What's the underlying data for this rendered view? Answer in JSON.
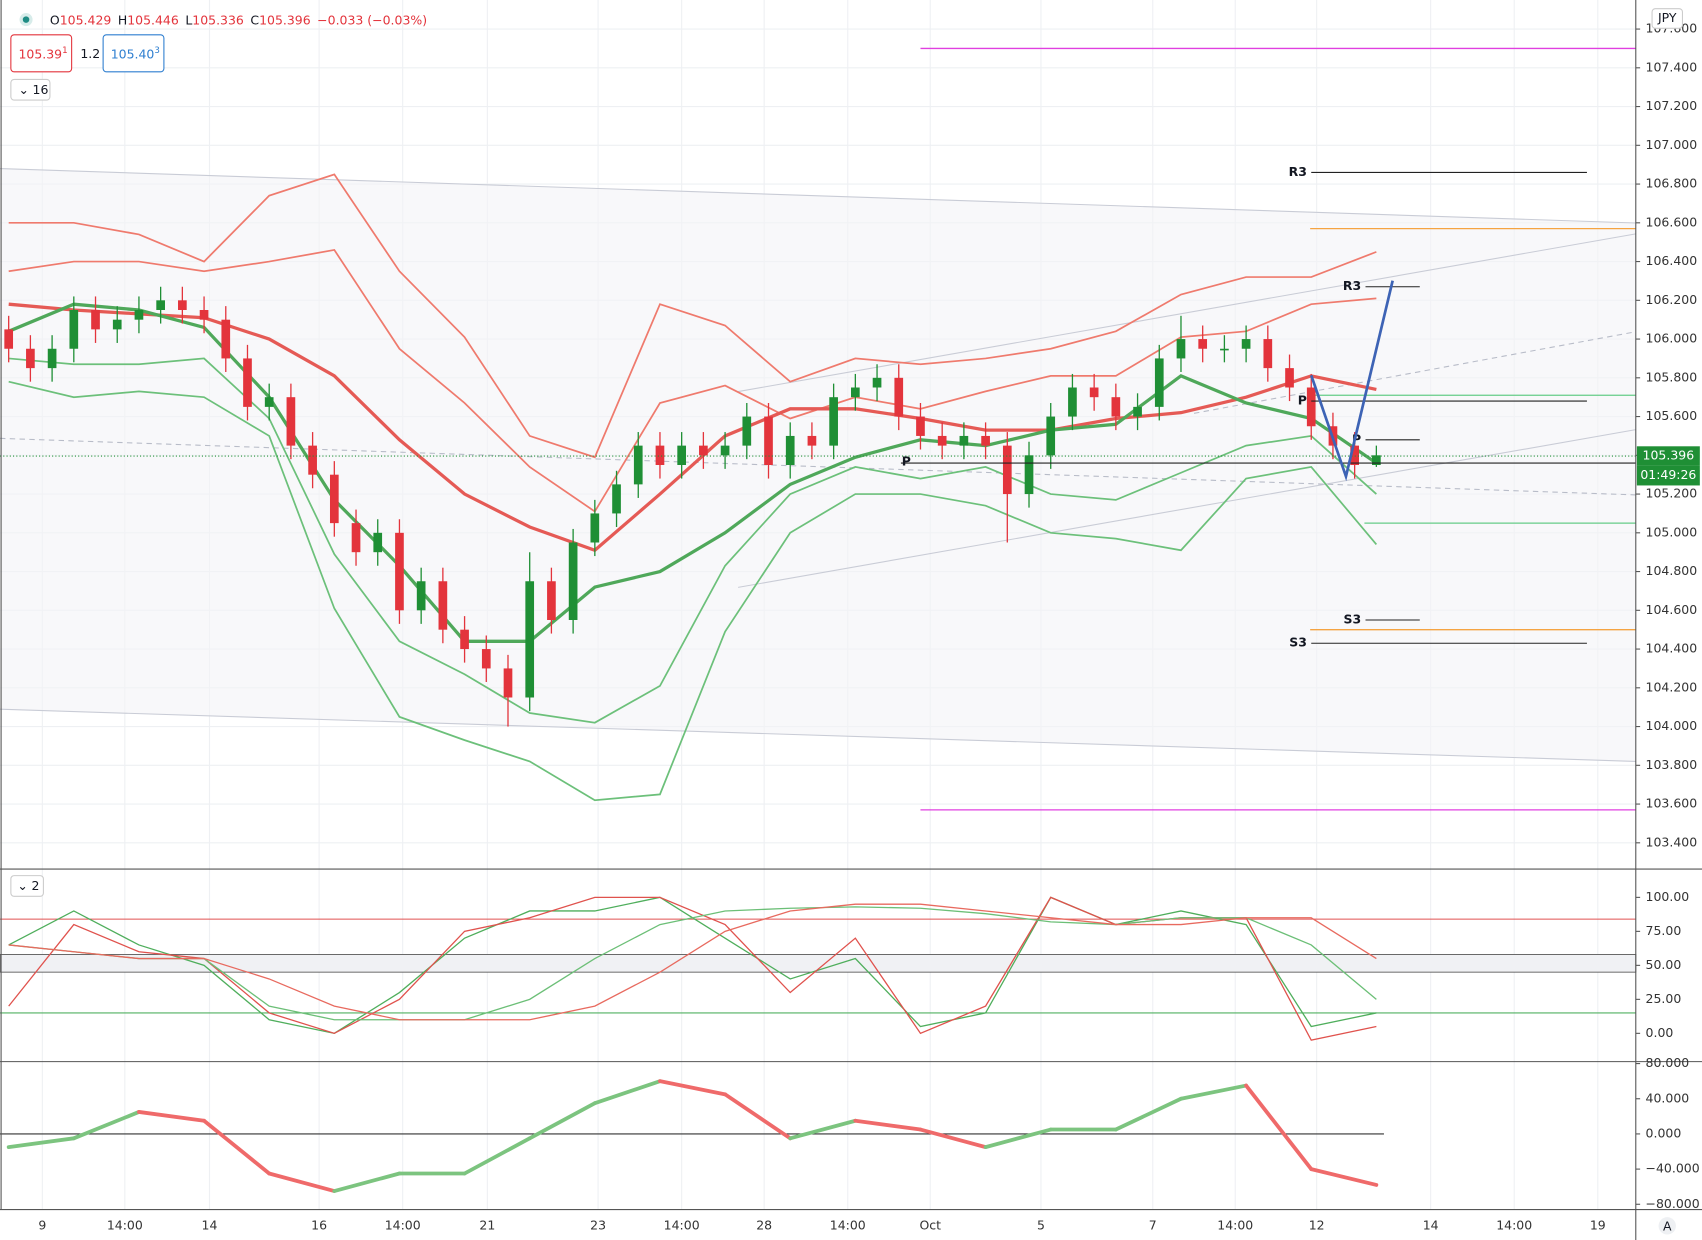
{
  "header": {
    "ohlc": [
      [
        "O",
        "105.429"
      ],
      [
        "H",
        "105.446"
      ],
      [
        "L",
        "105.336"
      ],
      [
        "C",
        "105.396"
      ]
    ],
    "change": "−0.033 (−0.03%)",
    "sell": "105.39",
    "sell_sup": "1",
    "spread": "1.2",
    "buy": "105.40",
    "buy_sup": "3",
    "interval_toggle": "16",
    "osc_toggle": "2",
    "currency": "JPY",
    "auto_label": "A"
  },
  "time_axis": [
    "9",
    "14:00",
    "14",
    "16",
    "14:00",
    "21",
    "23",
    "14:00",
    "28",
    "14:00",
    "Oct",
    "5",
    "7",
    "14:00",
    "12",
    "14",
    "14:00",
    "19"
  ],
  "chart_data": [
    {
      "type": "candlestick",
      "ylim": [
        103.27,
        107.75
      ],
      "grid": true,
      "up_color": "#1f8f35",
      "down_color": "#e3343c",
      "yticks": [
        {
          "value": 103.4,
          "label": "103.400"
        },
        {
          "value": 103.6,
          "label": "103.600"
        },
        {
          "value": 103.8,
          "label": "103.800"
        },
        {
          "value": 104.0,
          "label": "104.000"
        },
        {
          "value": 104.2,
          "label": "104.200"
        },
        {
          "value": 104.4,
          "label": "104.400"
        },
        {
          "value": 104.6,
          "label": "104.600"
        },
        {
          "value": 104.8,
          "label": "104.800"
        },
        {
          "value": 105.0,
          "label": "105.000"
        },
        {
          "value": 105.2,
          "label": "105.200"
        },
        {
          "value": 105.4,
          "label": "105.400"
        },
        {
          "value": 105.6,
          "label": "105.600"
        },
        {
          "value": 105.8,
          "label": "105.800"
        },
        {
          "value": 106.0,
          "label": "106.000"
        },
        {
          "value": 106.2,
          "label": "106.200"
        },
        {
          "value": 106.4,
          "label": "106.400"
        },
        {
          "value": 106.6,
          "label": "106.600"
        },
        {
          "value": 106.8,
          "label": "106.800"
        },
        {
          "value": 107.0,
          "label": "107.000"
        },
        {
          "value": 107.2,
          "label": "107.200"
        },
        {
          "value": 107.4,
          "label": "107.400"
        },
        {
          "value": 107.6,
          "label": "107.600"
        }
      ],
      "open": [
        106.05,
        105.95,
        105.85,
        105.95,
        106.15,
        106.05,
        106.1,
        106.15,
        106.2,
        106.15,
        106.1,
        105.9,
        105.65,
        105.7,
        105.45,
        105.3,
        105.05,
        104.9,
        105.0,
        104.6,
        104.75,
        104.5,
        104.4,
        104.3,
        104.15,
        104.75,
        104.55,
        104.95,
        105.1,
        105.25,
        105.45,
        105.35,
        105.45,
        105.4,
        105.45,
        105.6,
        105.35,
        105.5,
        105.45,
        105.7,
        105.75,
        105.8,
        105.6,
        105.5,
        105.45,
        105.5,
        105.45,
        105.2,
        105.4,
        105.6,
        105.75,
        105.7,
        105.6,
        105.65,
        105.9,
        106.0,
        105.95,
        105.95,
        106.0,
        105.85,
        105.75,
        105.55,
        105.45,
        105.35
      ],
      "high": [
        106.12,
        106.02,
        106.02,
        106.22,
        106.22,
        106.17,
        106.22,
        106.27,
        106.27,
        106.22,
        106.17,
        105.97,
        105.77,
        105.77,
        105.52,
        105.37,
        105.12,
        105.07,
        105.07,
        104.82,
        104.82,
        104.57,
        104.47,
        104.37,
        104.9,
        104.82,
        105.02,
        105.17,
        105.32,
        105.52,
        105.52,
        105.52,
        105.52,
        105.52,
        105.67,
        105.67,
        105.57,
        105.57,
        105.77,
        105.82,
        105.87,
        105.87,
        105.67,
        105.57,
        105.57,
        105.57,
        105.52,
        105.47,
        105.67,
        105.82,
        105.82,
        105.77,
        105.72,
        105.97,
        106.12,
        106.07,
        106.02,
        106.07,
        106.07,
        105.92,
        105.82,
        105.62,
        105.52,
        105.45
      ],
      "low": [
        105.88,
        105.78,
        105.78,
        105.88,
        105.98,
        105.98,
        106.03,
        106.08,
        106.08,
        106.03,
        105.83,
        105.58,
        105.58,
        105.38,
        105.23,
        104.98,
        104.83,
        104.83,
        104.53,
        104.53,
        104.43,
        104.33,
        104.23,
        104.0,
        104.08,
        104.48,
        104.48,
        104.88,
        105.03,
        105.18,
        105.28,
        105.28,
        105.33,
        105.33,
        105.38,
        105.28,
        105.28,
        105.38,
        105.38,
        105.63,
        105.68,
        105.53,
        105.43,
        105.38,
        105.38,
        105.38,
        104.95,
        105.13,
        105.33,
        105.53,
        105.63,
        105.53,
        105.53,
        105.58,
        105.83,
        105.88,
        105.88,
        105.88,
        105.78,
        105.68,
        105.48,
        105.38,
        105.28,
        105.34
      ],
      "close": [
        105.95,
        105.85,
        105.95,
        106.15,
        106.05,
        106.1,
        106.15,
        106.2,
        106.15,
        106.1,
        105.9,
        105.65,
        105.7,
        105.45,
        105.3,
        105.05,
        104.9,
        105.0,
        104.6,
        104.75,
        104.5,
        104.4,
        104.3,
        104.15,
        104.75,
        104.55,
        104.95,
        105.1,
        105.25,
        105.45,
        105.35,
        105.45,
        105.4,
        105.45,
        105.6,
        105.35,
        105.5,
        105.45,
        105.7,
        105.75,
        105.8,
        105.6,
        105.5,
        105.45,
        105.5,
        105.45,
        105.2,
        105.4,
        105.6,
        105.75,
        105.7,
        105.6,
        105.65,
        105.9,
        106.0,
        105.95,
        105.95,
        106.0,
        105.85,
        105.75,
        105.55,
        105.45,
        105.35,
        105.4
      ],
      "overlays": [
        {
          "color": "#ef7a6d",
          "width": 1.6,
          "values": [
            106.6,
            106.6,
            106.54,
            106.4,
            106.74,
            106.85,
            106.35,
            106.01,
            105.5,
            105.39,
            106.18,
            106.07,
            105.78,
            105.9,
            105.87,
            105.9,
            105.95,
            106.04,
            106.23,
            106.32,
            106.32,
            106.45
          ]
        },
        {
          "color": "#ef7a6d",
          "width": 1.6,
          "values": [
            106.35,
            106.4,
            106.4,
            106.35,
            106.4,
            106.46,
            105.95,
            105.67,
            105.34,
            105.11,
            105.67,
            105.76,
            105.59,
            105.7,
            105.64,
            105.73,
            105.81,
            105.81,
            106.01,
            106.04,
            106.18,
            106.21
          ]
        },
        {
          "color": "#e55a55",
          "width": 3,
          "values": [
            106.18,
            106.15,
            106.13,
            106.11,
            106.0,
            105.81,
            105.48,
            105.2,
            105.03,
            104.91,
            105.2,
            105.5,
            105.64,
            105.64,
            105.59,
            105.53,
            105.53,
            105.59,
            105.62,
            105.7,
            105.81,
            105.74
          ]
        },
        {
          "color": "#4fa85a",
          "width": 3,
          "values": [
            106.04,
            106.18,
            106.15,
            106.06,
            105.7,
            105.17,
            104.83,
            104.44,
            104.44,
            104.72,
            104.8,
            105.0,
            105.25,
            105.39,
            105.48,
            105.45,
            105.53,
            105.56,
            105.81,
            105.67,
            105.59,
            105.36
          ]
        },
        {
          "color": "#6cc07a",
          "width": 1.6,
          "values": [
            105.9,
            105.87,
            105.87,
            105.9,
            105.59,
            104.89,
            104.44,
            104.27,
            104.07,
            104.02,
            104.21,
            104.83,
            105.2,
            105.34,
            105.28,
            105.34,
            105.2,
            105.17,
            105.31,
            105.45,
            105.5,
            105.2
          ]
        },
        {
          "color": "#6cc07a",
          "width": 1.6,
          "values": [
            105.78,
            105.7,
            105.73,
            105.7,
            105.5,
            104.61,
            104.05,
            103.93,
            103.82,
            103.62,
            103.65,
            104.49,
            105.0,
            105.2,
            105.2,
            105.14,
            105.0,
            104.97,
            104.91,
            105.28,
            105.34,
            104.94
          ]
        }
      ],
      "levels": [
        {
          "value": 107.5,
          "color": "#e040e0"
        },
        {
          "value": 103.57,
          "color": "#e040e0"
        },
        {
          "value": 106.57,
          "color": "#f5a442"
        },
        {
          "value": 104.5,
          "color": "#f5a442"
        },
        {
          "value": 105.71,
          "color": "#66cc88"
        },
        {
          "value": 105.05,
          "color": "#66cc88"
        }
      ],
      "pivots": [
        {
          "label": "R3",
          "value": 106.86
        },
        {
          "label": "R3",
          "value": 106.27
        },
        {
          "label": "P",
          "value": 105.68
        },
        {
          "label": "P",
          "value": 105.48
        },
        {
          "label": "S3",
          "value": 104.55
        },
        {
          "label": "S3",
          "value": 104.43
        },
        {
          "label": "P",
          "value": 105.36
        }
      ],
      "last_price": {
        "value": 105.396,
        "label": "105.396"
      },
      "countdown": "01:49:26"
    },
    {
      "type": "oscillator",
      "ylim": [
        -20,
        120
      ],
      "yticks": [
        {
          "value": 100,
          "label": "100.00"
        },
        {
          "value": 75,
          "label": "75.00"
        },
        {
          "value": 50,
          "label": "50.00"
        },
        {
          "value": 25,
          "label": "25.00"
        },
        {
          "value": 0,
          "label": "0.00"
        }
      ],
      "levels": [
        {
          "value": 84,
          "color": "#e05050"
        },
        {
          "value": 15,
          "color": "#50b060"
        }
      ],
      "band": [
        45,
        58
      ],
      "series": [
        {
          "color": "#4fae5c",
          "values": [
            65,
            90,
            65,
            50,
            10,
            0,
            30,
            70,
            90,
            90,
            100,
            70,
            40,
            55,
            5,
            15,
            100,
            80,
            90,
            80,
            5,
            15
          ]
        },
        {
          "color": "#e0524d",
          "values": [
            20,
            80,
            60,
            55,
            15,
            0,
            25,
            75,
            85,
            100,
            100,
            80,
            30,
            70,
            0,
            20,
            100,
            80,
            85,
            85,
            -5,
            5
          ]
        },
        {
          "color": "#6cbf77",
          "values": [
            65,
            60,
            55,
            55,
            20,
            10,
            10,
            10,
            25,
            55,
            80,
            90,
            92,
            93,
            92,
            88,
            82,
            80,
            85,
            85,
            65,
            25
          ]
        },
        {
          "color": "#e86a5f",
          "values": [
            65,
            60,
            55,
            55,
            40,
            20,
            10,
            10,
            10,
            20,
            45,
            75,
            90,
            95,
            95,
            90,
            85,
            80,
            80,
            85,
            85,
            55
          ]
        }
      ]
    },
    {
      "type": "momentum",
      "ylim": [
        -86,
        81
      ],
      "yticks": [
        {
          "value": 80,
          "label": "80.000"
        },
        {
          "value": 40,
          "label": "40.000"
        },
        {
          "value": 0,
          "label": "0.000"
        },
        {
          "value": -40,
          "label": "−40.000"
        },
        {
          "value": -80,
          "label": "−80.000"
        }
      ],
      "levels": [
        {
          "value": 0,
          "color": "#333333"
        }
      ],
      "up_color": "#7cc47f",
      "down_color": "#ef6a6a",
      "values": [
        -15,
        -5,
        25,
        15,
        -45,
        -65,
        -45,
        -45,
        -5,
        35,
        60,
        45,
        -5,
        15,
        5,
        -15,
        5,
        5,
        40,
        55,
        -40,
        -58
      ]
    }
  ]
}
